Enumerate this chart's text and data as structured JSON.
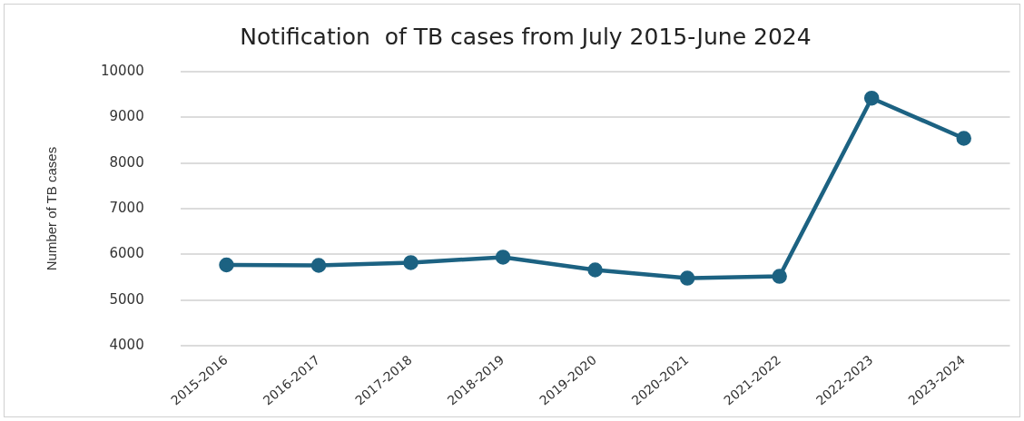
{
  "chart_data": {
    "type": "line",
    "title": "Notification  of TB cases from July 2015-June 2024",
    "ylabel": "Number of TB cases",
    "categories": [
      "2015-2016",
      "2016-2017",
      "2017-2018",
      "2018-2019",
      "2019-2020",
      "2020-2021",
      "2021-2022",
      "2022-2023",
      "2023-2024"
    ],
    "series": [
      {
        "color": "#1c6282",
        "values": [
          5770,
          5760,
          5820,
          5940,
          5660,
          5480,
          5520,
          9420,
          8540
        ]
      }
    ],
    "ylim": [
      4000,
      10000
    ],
    "yticks": [
      4000,
      5000,
      6000,
      7000,
      8000,
      9000,
      10000
    ],
    "grid": "y",
    "marker": "circle",
    "legend": false
  }
}
